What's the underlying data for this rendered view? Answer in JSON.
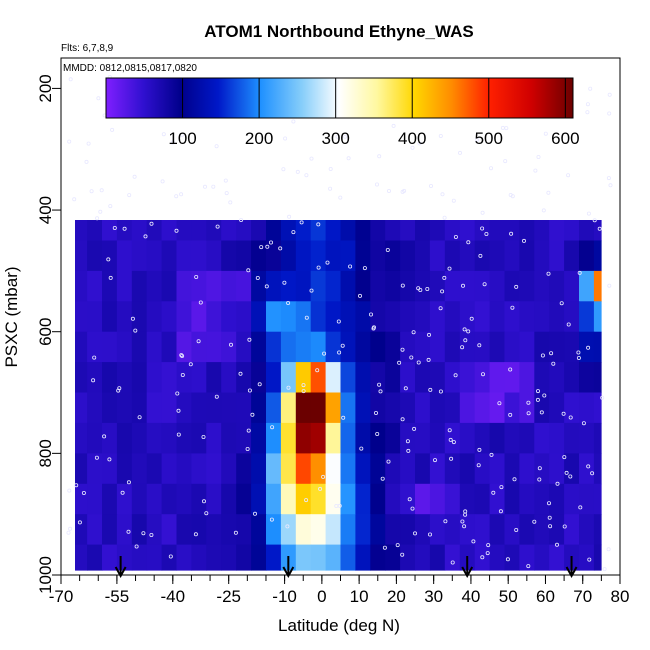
{
  "chart_data": {
    "type": "heatmap",
    "title": "ATOM1 Northbound Ethyne_WAS",
    "subtitle_flights": "Flts: 6,7,8,9",
    "subtitle_dates": "MMDD: 0812,0815,0817,0820",
    "xlabel": "Latitude (deg N)",
    "ylabel": "PSXC (mbar)",
    "xlim": [
      -70,
      80
    ],
    "ylim": [
      1000,
      150
    ],
    "x_ticks": [
      -70,
      -55,
      -40,
      -25,
      -10,
      0,
      10,
      20,
      30,
      40,
      50,
      60,
      70,
      80
    ],
    "x_tick_labels": [
      "-70",
      "-55",
      "-40",
      "-25",
      "-10",
      "0",
      "10",
      "20",
      "30",
      "40",
      "50",
      "60",
      "70",
      "80"
    ],
    "y_ticks": [
      200,
      400,
      600,
      800,
      1000
    ],
    "y_tick_labels": [
      "200",
      "400",
      "600",
      "800",
      "1000"
    ],
    "colorbar": {
      "range": [
        0,
        610
      ],
      "ticks": [
        100,
        200,
        300,
        400,
        500,
        600
      ],
      "tick_labels": [
        "100",
        "200",
        "300",
        "400",
        "500",
        "600"
      ],
      "colors": [
        "#7f1fff",
        "#00008b",
        "#1e90ff",
        "#ffffff",
        "#ffd700",
        "#ff8c00",
        "#ff0000",
        "#8b0000"
      ]
    },
    "flight_markers_lat": [
      -54,
      -9,
      39,
      67
    ],
    "grid_x": [
      -69,
      -65,
      -61,
      -57,
      -53,
      -49,
      -45,
      -41,
      -37,
      -33,
      -29,
      -25,
      -21,
      -17,
      -13,
      -9,
      -5,
      -1,
      3,
      7,
      11,
      15,
      19,
      23,
      27,
      31,
      35,
      39,
      43,
      47,
      51,
      55,
      59,
      63,
      67,
      71,
      75,
      79
    ],
    "grid_p": [
      175,
      225,
      275,
      325,
      375,
      425,
      475,
      525,
      575,
      625,
      675,
      725,
      775,
      825,
      875,
      925,
      975
    ],
    "bin_width_lat": 4,
    "bin_height_p": 50
  }
}
